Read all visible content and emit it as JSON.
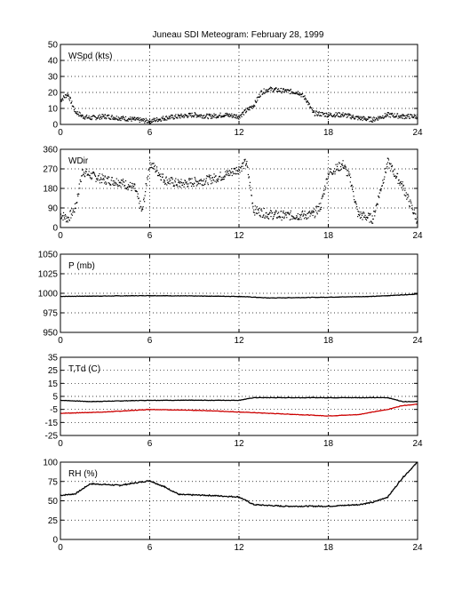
{
  "title": "Juneau SDI Meteogram:  February 28, 1999",
  "colors": {
    "background": "#ffffff",
    "axes": "#000000",
    "temperature": "#000000",
    "dewpoint": "#cc0000"
  },
  "chart_data": [
    {
      "type": "scatter",
      "label": "WSpd (kts)",
      "xlim": [
        0,
        24
      ],
      "xticks": [
        "0",
        "6",
        "12",
        "18",
        "24"
      ],
      "ylim": [
        0,
        50
      ],
      "yticks": [
        "0",
        "10",
        "20",
        "30",
        "40",
        "50"
      ],
      "grid": true,
      "series": [
        {
          "color": "#000000",
          "x": [
            0,
            0.5,
            1,
            1.5,
            2,
            3,
            4,
            5,
            6,
            7,
            8,
            9,
            10,
            11,
            12,
            13,
            13.5,
            14,
            15,
            16,
            16.5,
            17,
            18,
            19,
            20,
            21,
            22,
            23,
            24
          ],
          "y": [
            15,
            19,
            8,
            5,
            4,
            5,
            4,
            3,
            2,
            4,
            5,
            6,
            5,
            6,
            5,
            12,
            20,
            22,
            21,
            20,
            16,
            7,
            6,
            6,
            4,
            3,
            6,
            5,
            5
          ]
        }
      ]
    },
    {
      "type": "scatter",
      "label": "WDir",
      "xlim": [
        0,
        24
      ],
      "xticks": [
        "0",
        "6",
        "12",
        "18",
        "24"
      ],
      "ylim": [
        0,
        360
      ],
      "yticks": [
        "0",
        "90",
        "180",
        "270",
        "360"
      ],
      "grid": true,
      "series": [
        {
          "color": "#000000",
          "x": [
            0,
            0.5,
            1,
            1.5,
            2,
            3,
            4,
            5,
            5.5,
            6,
            7,
            8,
            9,
            10,
            11,
            12,
            12.5,
            13,
            14,
            15,
            16,
            17,
            17.5,
            18,
            19,
            19.5,
            20,
            21,
            22,
            23,
            24
          ],
          "y": [
            60,
            40,
            90,
            260,
            240,
            220,
            210,
            180,
            70,
            300,
            220,
            200,
            210,
            220,
            240,
            270,
            300,
            80,
            60,
            55,
            55,
            60,
            100,
            250,
            290,
            220,
            60,
            40,
            300,
            190,
            30
          ]
        }
      ]
    },
    {
      "type": "line",
      "label": "P (mb)",
      "xlim": [
        0,
        24
      ],
      "xticks": [
        "0",
        "6",
        "12",
        "18",
        "24"
      ],
      "ylim": [
        950,
        1050
      ],
      "yticks": [
        "950",
        "975",
        "1000",
        "1025",
        "1050"
      ],
      "grid": true,
      "series": [
        {
          "color": "#000000",
          "x": [
            0,
            6,
            12,
            14,
            18,
            21,
            24
          ],
          "y": [
            996,
            997,
            996,
            994,
            995,
            996,
            999
          ]
        }
      ]
    },
    {
      "type": "line",
      "label": "T,Td (C)",
      "xlim": [
        0,
        24
      ],
      "xticks": [
        "0",
        "6",
        "12",
        "18",
        "24"
      ],
      "ylim": [
        -25,
        35
      ],
      "yticks": [
        "-25",
        "-15",
        "-5",
        "5",
        "15",
        "25",
        "35"
      ],
      "grid": true,
      "series": [
        {
          "name": "T",
          "color": "#000000",
          "x": [
            0,
            2,
            6,
            10,
            12,
            13,
            18,
            22,
            23,
            24
          ],
          "y": [
            2,
            1,
            2,
            2,
            2,
            4,
            4,
            4,
            1,
            1
          ]
        },
        {
          "name": "Td",
          "color": "#cc0000",
          "x": [
            0,
            3,
            6,
            10,
            12,
            14,
            18,
            20,
            22,
            23,
            24
          ],
          "y": [
            -8,
            -7,
            -5,
            -6,
            -7,
            -8,
            -10,
            -9,
            -5,
            -2,
            -1
          ]
        }
      ]
    },
    {
      "type": "line",
      "label": "RH (%)",
      "xlim": [
        0,
        24
      ],
      "xticks": [
        "0",
        "6",
        "12",
        "18",
        "24"
      ],
      "ylim": [
        0,
        100
      ],
      "yticks": [
        "0",
        "25",
        "50",
        "75",
        "100"
      ],
      "grid": true,
      "series": [
        {
          "color": "#000000",
          "x": [
            0,
            1,
            2,
            4,
            6,
            7,
            8,
            10,
            12,
            13,
            15,
            18,
            20,
            21,
            22,
            23,
            24
          ],
          "y": [
            57,
            59,
            72,
            70,
            76,
            68,
            58,
            57,
            55,
            45,
            43,
            43,
            45,
            48,
            55,
            80,
            100
          ]
        }
      ]
    }
  ]
}
